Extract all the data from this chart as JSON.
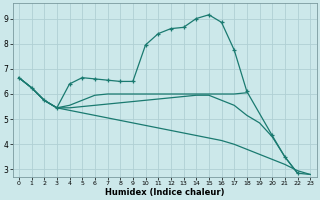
{
  "xlabel": "Humidex (Indice chaleur)",
  "background_color": "#cce8ea",
  "grid_color": "#b0d0d4",
  "line_color": "#1a7a70",
  "xlim": [
    -0.5,
    23.5
  ],
  "ylim": [
    2.7,
    9.6
  ],
  "yticks": [
    3,
    4,
    5,
    6,
    7,
    8,
    9
  ],
  "xticks": [
    0,
    1,
    2,
    3,
    4,
    5,
    6,
    7,
    8,
    9,
    10,
    11,
    12,
    13,
    14,
    15,
    16,
    17,
    18,
    19,
    20,
    21,
    22,
    23
  ],
  "line1_x": [
    0,
    1,
    2,
    3,
    4,
    5,
    6,
    7,
    8,
    9,
    10,
    11,
    12,
    13,
    14,
    15,
    16,
    17,
    18,
    20,
    21,
    22
  ],
  "line1_y": [
    6.65,
    6.25,
    5.75,
    5.45,
    6.4,
    6.65,
    6.6,
    6.55,
    6.5,
    6.5,
    7.95,
    8.4,
    8.6,
    8.65,
    9.0,
    9.15,
    8.85,
    7.75,
    6.1,
    4.35,
    3.5,
    2.85
  ],
  "line2_x": [
    0,
    1,
    2,
    3,
    4,
    5,
    6,
    7,
    8,
    9,
    10,
    11,
    12,
    13,
    14,
    15,
    16,
    17,
    18
  ],
  "line2_y": [
    6.65,
    6.25,
    5.75,
    5.45,
    5.55,
    5.75,
    5.95,
    6.0,
    6.0,
    6.0,
    6.0,
    6.0,
    6.0,
    6.0,
    6.0,
    6.0,
    6.0,
    6.0,
    6.05
  ],
  "line3_x": [
    0,
    1,
    2,
    3,
    4,
    5,
    6,
    7,
    8,
    9,
    10,
    11,
    12,
    13,
    14,
    15,
    16,
    17,
    18,
    19,
    20,
    21,
    22,
    23
  ],
  "line3_y": [
    6.65,
    6.25,
    5.75,
    5.45,
    5.45,
    5.5,
    5.55,
    5.6,
    5.65,
    5.7,
    5.75,
    5.8,
    5.85,
    5.9,
    5.95,
    5.95,
    5.75,
    5.55,
    5.15,
    4.85,
    4.3,
    3.5,
    2.85,
    2.8
  ],
  "line4_x": [
    0,
    1,
    2,
    3,
    4,
    5,
    6,
    7,
    8,
    9,
    10,
    11,
    12,
    13,
    14,
    15,
    16,
    17,
    18,
    19,
    20,
    21,
    22,
    23
  ],
  "line4_y": [
    6.65,
    6.25,
    5.75,
    5.45,
    5.35,
    5.25,
    5.15,
    5.05,
    4.95,
    4.85,
    4.75,
    4.65,
    4.55,
    4.45,
    4.35,
    4.25,
    4.15,
    4.0,
    3.8,
    3.6,
    3.4,
    3.2,
    2.95,
    2.8
  ]
}
